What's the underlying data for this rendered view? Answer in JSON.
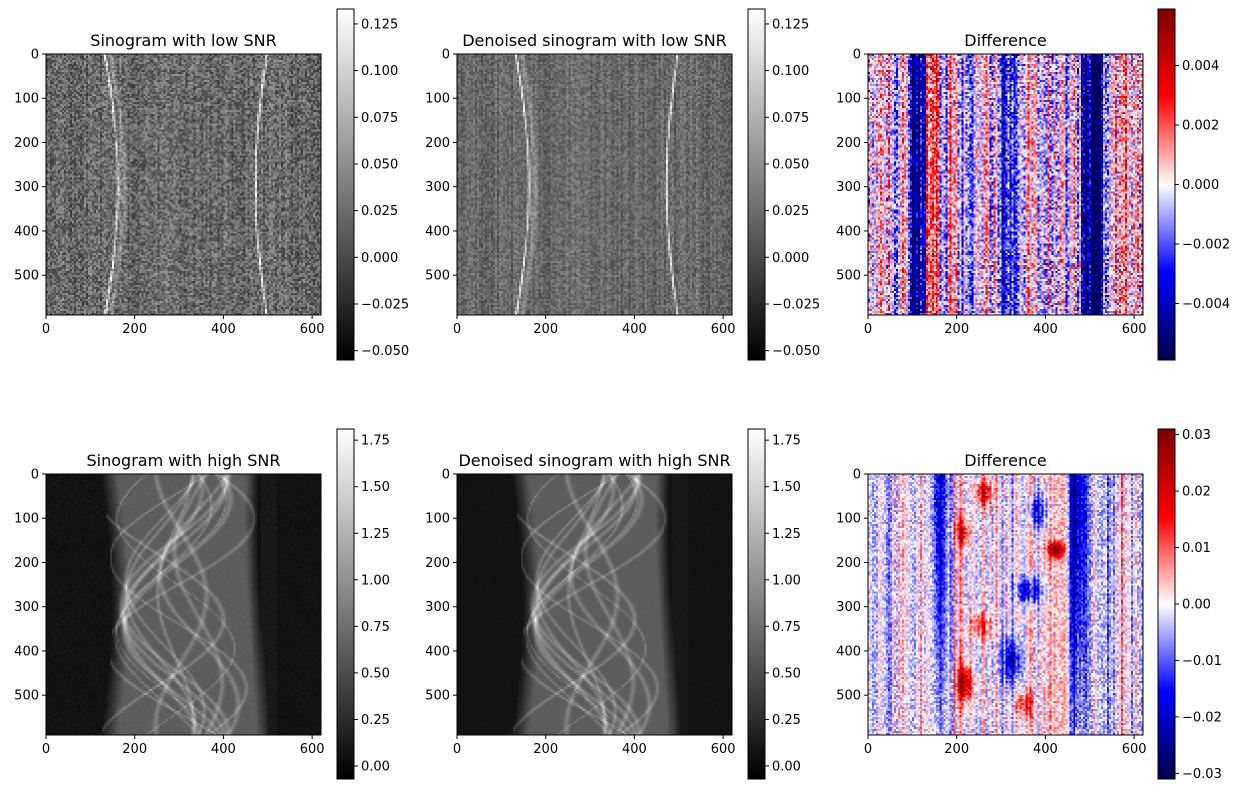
{
  "chart_data": [
    {
      "type": "heatmap",
      "title": "Sinogram with low SNR",
      "colormap": "gray",
      "xlim": [
        0,
        620
      ],
      "ylim": [
        590,
        0
      ],
      "xticks": [
        "0",
        "200",
        "400",
        "600"
      ],
      "yticks": [
        "0",
        "100",
        "200",
        "300",
        "400",
        "500"
      ],
      "colorbar": {
        "min": -0.055,
        "max": 0.133,
        "ticks": [
          "0.125",
          "0.100",
          "0.075",
          "0.050",
          "0.025",
          "0.000",
          "−0.025",
          "−0.050"
        ],
        "tick_values": [
          0.125,
          0.1,
          0.075,
          0.05,
          0.025,
          0.0,
          -0.025,
          -0.05
        ]
      },
      "image": {
        "kind": "sinogram-low",
        "seed": 11,
        "denoised": false
      }
    },
    {
      "type": "heatmap",
      "title": "Denoised sinogram with low SNR",
      "colormap": "gray",
      "xlim": [
        0,
        620
      ],
      "ylim": [
        590,
        0
      ],
      "xticks": [
        "0",
        "200",
        "400",
        "600"
      ],
      "yticks": [
        "0",
        "100",
        "200",
        "300",
        "400",
        "500"
      ],
      "colorbar": {
        "min": -0.055,
        "max": 0.133,
        "ticks": [
          "0.125",
          "0.100",
          "0.075",
          "0.050",
          "0.025",
          "0.000",
          "−0.025",
          "−0.050"
        ],
        "tick_values": [
          0.125,
          0.1,
          0.075,
          0.05,
          0.025,
          0.0,
          -0.025,
          -0.05
        ]
      },
      "image": {
        "kind": "sinogram-low",
        "seed": 11,
        "denoised": true
      }
    },
    {
      "type": "heatmap",
      "title": "Difference",
      "colormap": "seismic",
      "xlim": [
        0,
        620
      ],
      "ylim": [
        590,
        0
      ],
      "xticks": [
        "0",
        "200",
        "400",
        "600"
      ],
      "yticks": [
        "0",
        "100",
        "200",
        "300",
        "400",
        "500"
      ],
      "colorbar": {
        "min": -0.0059,
        "max": 0.0059,
        "ticks": [
          "0.004",
          "0.002",
          "0.000",
          "−0.002",
          "−0.004"
        ],
        "tick_values": [
          0.004,
          0.002,
          0.0,
          -0.002,
          -0.004
        ]
      },
      "image": {
        "kind": "difference-low",
        "seed": 23
      }
    },
    {
      "type": "heatmap",
      "title": "Sinogram with high SNR",
      "colormap": "gray",
      "xlim": [
        0,
        620
      ],
      "ylim": [
        590,
        0
      ],
      "xticks": [
        "0",
        "200",
        "400",
        "600"
      ],
      "yticks": [
        "0",
        "100",
        "200",
        "300",
        "400",
        "500"
      ],
      "colorbar": {
        "min": -0.07,
        "max": 1.81,
        "ticks": [
          "1.75",
          "1.50",
          "1.25",
          "1.00",
          "0.75",
          "0.50",
          "0.25",
          "0.00"
        ],
        "tick_values": [
          1.75,
          1.5,
          1.25,
          1.0,
          0.75,
          0.5,
          0.25,
          0.0
        ]
      },
      "image": {
        "kind": "sinogram-high",
        "seed": 37,
        "denoised": false
      }
    },
    {
      "type": "heatmap",
      "title": "Denoised sinogram with high SNR",
      "colormap": "gray",
      "xlim": [
        0,
        620
      ],
      "ylim": [
        590,
        0
      ],
      "xticks": [
        "0",
        "200",
        "400",
        "600"
      ],
      "yticks": [
        "0",
        "100",
        "200",
        "300",
        "400",
        "500"
      ],
      "colorbar": {
        "min": -0.07,
        "max": 1.81,
        "ticks": [
          "1.75",
          "1.50",
          "1.25",
          "1.00",
          "0.75",
          "0.50",
          "0.25",
          "0.00"
        ],
        "tick_values": [
          1.75,
          1.5,
          1.25,
          1.0,
          0.75,
          0.5,
          0.25,
          0.0
        ]
      },
      "image": {
        "kind": "sinogram-high",
        "seed": 37,
        "denoised": true
      }
    },
    {
      "type": "heatmap",
      "title": "Difference",
      "colormap": "seismic",
      "xlim": [
        0,
        620
      ],
      "ylim": [
        590,
        0
      ],
      "xticks": [
        "0",
        "200",
        "400",
        "600"
      ],
      "yticks": [
        "0",
        "100",
        "200",
        "300",
        "400",
        "500"
      ],
      "colorbar": {
        "min": -0.031,
        "max": 0.031,
        "ticks": [
          "0.03",
          "0.02",
          "0.01",
          "0.00",
          "−0.01",
          "−0.02",
          "−0.03"
        ],
        "tick_values": [
          0.03,
          0.02,
          0.01,
          0.0,
          -0.01,
          -0.02,
          -0.03
        ]
      },
      "image": {
        "kind": "difference-high",
        "seed": 53
      }
    }
  ]
}
